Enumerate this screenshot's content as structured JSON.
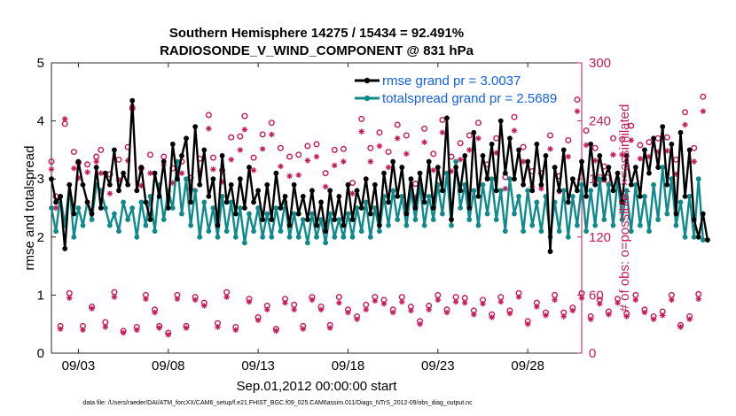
{
  "chart_data": {
    "type": "line",
    "title_line1": "Southern Hemisphere 14275 / 15434 = 92.491%",
    "title_line2": "RADIOSONDE_V_WIND_COMPONENT @ 831 hPa",
    "xlabel": "Sep.01,2012 00:00:00 start",
    "ylabel": "rmse and totalspread",
    "ylabel_right": "# of obs: o=possible; ×=assimilated",
    "xlim": [
      1.5,
      31.0
    ],
    "ylim": [
      0,
      5
    ],
    "ylim_right": [
      0,
      300
    ],
    "xticks": [
      {
        "value": 3,
        "label": "09/03"
      },
      {
        "value": 8,
        "label": "09/08"
      },
      {
        "value": 13,
        "label": "09/13"
      },
      {
        "value": 18,
        "label": "09/18"
      },
      {
        "value": 23,
        "label": "09/23"
      },
      {
        "value": 28,
        "label": "09/28"
      }
    ],
    "yticks": [
      "0",
      "1",
      "2",
      "3",
      "4",
      "5"
    ],
    "yticks_right": [
      "0",
      "60",
      "120",
      "180",
      "240",
      "300"
    ],
    "footnote": "data file: /Users/raeder/DAI/ATM_forcXX/CAM6_setup/f.e21.FHIST_BGC.f09_025.CAM6assim.011/Diags_NTrS_2012-09/obs_diag_output.nc",
    "colors": {
      "rmse": "#000000",
      "spread": "#0f8a8a",
      "obs": "#c7195b",
      "legend_text": "#1460e8"
    },
    "series": [
      {
        "name": "rmse",
        "legend": "rmse grand pr = 3.0037",
        "x_start": 1.5,
        "x_step": 0.25,
        "values": [
          3.0,
          2.6,
          2.7,
          1.8,
          2.9,
          2.4,
          3.3,
          2.9,
          2.6,
          2.4,
          3.2,
          2.5,
          3.1,
          2.9,
          3.5,
          2.8,
          3.1,
          2.9,
          4.35,
          2.8,
          3.2,
          2.6,
          2.3,
          3.1,
          2.7,
          3.3,
          2.5,
          3.6,
          3.0,
          3.4,
          3.7,
          2.6,
          3.9,
          2.9,
          3.5,
          2.7,
          3.0,
          2.2,
          3.4,
          2.6,
          2.9,
          2.4,
          3.0,
          2.5,
          3.2,
          2.6,
          2.8,
          2.3,
          2.9,
          2.3,
          3.1,
          2.5,
          2.7,
          2.2,
          2.9,
          2.4,
          2.7,
          2.3,
          2.8,
          2.2,
          2.6,
          2.1,
          2.8,
          2.3,
          2.7,
          2.2,
          2.9,
          2.3,
          2.8,
          2.5,
          3.0,
          2.4,
          2.9,
          2.2,
          3.1,
          2.6,
          3.3,
          2.7,
          3.2,
          2.4,
          3.0,
          2.5,
          3.1,
          2.6,
          3.3,
          2.5,
          3.2,
          2.8,
          4.05,
          2.3,
          3.2,
          2.8,
          3.4,
          2.5,
          3.8,
          2.7,
          3.4,
          3.0,
          3.6,
          2.8,
          4.0,
          3.1,
          3.7,
          3.0,
          3.5,
          2.9,
          3.3,
          2.8,
          3.6,
          2.9,
          3.4,
          1.75,
          3.2,
          2.8,
          3.5,
          2.6,
          3.0,
          2.8,
          3.3,
          2.7,
          3.6,
          2.9,
          3.4,
          3.0,
          3.2,
          2.8,
          3.1,
          2.6,
          3.4,
          2.9,
          3.2,
          2.7,
          3.5,
          3.1,
          3.7,
          3.2,
          3.9,
          2.9,
          3.6,
          2.4,
          3.8,
          2.7,
          3.5,
          2.3,
          2.0,
          2.4,
          1.95
        ]
      },
      {
        "name": "totalspread",
        "legend": "totalspread grand pr = 2.5689",
        "x_start": 1.5,
        "x_step": 0.25,
        "values": [
          2.5,
          2.1,
          2.7,
          2.2,
          2.9,
          2.0,
          2.5,
          2.2,
          2.6,
          2.3,
          2.9,
          2.8,
          2.5,
          2.2,
          2.4,
          2.1,
          2.6,
          2.3,
          2.5,
          2.0,
          2.6,
          2.2,
          2.7,
          2.1,
          2.9,
          2.3,
          2.8,
          2.5,
          3.3,
          2.4,
          3.0,
          2.2,
          2.8,
          2.0,
          2.6,
          2.1,
          2.5,
          2.0,
          2.7,
          2.1,
          2.6,
          2.0,
          2.5,
          1.9,
          2.4,
          2.1,
          2.5,
          2.0,
          2.4,
          2.0,
          2.5,
          2.1,
          2.6,
          2.0,
          2.4,
          2.0,
          2.3,
          1.9,
          2.4,
          2.0,
          2.3,
          1.9,
          2.4,
          2.0,
          2.3,
          2.0,
          2.4,
          2.0,
          2.5,
          2.1,
          2.6,
          2.0,
          2.5,
          2.1,
          2.7,
          2.2,
          2.8,
          2.3,
          2.7,
          2.2,
          2.8,
          2.3,
          2.9,
          2.2,
          2.7,
          2.3,
          2.9,
          2.4,
          3.1,
          2.2,
          3.3,
          2.5,
          2.9,
          2.3,
          2.8,
          2.2,
          2.9,
          2.4,
          3.0,
          2.3,
          2.8,
          2.1,
          3.0,
          2.4,
          2.7,
          2.1,
          2.8,
          2.2,
          2.6,
          2.1,
          2.7,
          2.0,
          2.6,
          2.1,
          2.8,
          2.0,
          2.7,
          2.2,
          2.9,
          2.1,
          2.8,
          2.2,
          3.0,
          2.3,
          2.9,
          2.2,
          3.0,
          2.3,
          2.8,
          2.1,
          2.9,
          2.2,
          2.7,
          2.1,
          2.9,
          2.3,
          3.2,
          2.4,
          3.0,
          2.2,
          2.6,
          2.0,
          2.7,
          2.0,
          3.0,
          1.95
        ]
      },
      {
        "name": "obs_possible",
        "marker": "o",
        "axis": "right",
        "x_start": 1.5,
        "x_step": 0.25,
        "values": [
          198,
          162,
          28,
          237,
          62,
          208,
          197,
          28,
          195,
          48,
          203,
          210,
          32,
          185,
          63,
          200,
          23,
          213,
          253,
          27,
          191,
          60,
          205,
          45,
          28,
          203,
          21,
          191,
          60,
          198,
          28,
          181,
          58,
          201,
          52,
          246,
          202,
          31,
          189,
          63,
          223,
          27,
          224,
          245,
          56,
          202,
          37,
          226,
          49,
          238,
          25,
          212,
          56,
          203,
          50,
          205,
          28,
          214,
          58,
          216,
          48,
          186,
          29,
          210,
          58,
          211,
          45,
          176,
          38,
          242,
          50,
          212,
          58,
          228,
          55,
          208,
          45,
          236,
          58,
          225,
          48,
          175,
          33,
          232,
          49,
          206,
          60,
          241,
          45,
          203,
          58,
          217,
          57,
          225,
          44,
          238,
          55,
          195,
          40,
          222,
          58,
          182,
          44,
          244,
          62,
          213,
          33,
          188,
          52,
          186,
          42,
          225,
          60,
          183,
          42,
          220,
          47,
          262,
          62,
          230,
          38,
          212,
          55,
          193,
          43,
          222,
          56,
          221,
          41,
          235,
          60,
          215,
          45,
          218,
          38,
          222,
          43,
          223,
          60,
          200,
          29,
          249,
          38,
          212,
          61,
          265
        ]
      },
      {
        "name": "obs_assimilated",
        "marker": "x",
        "axis": "right",
        "x_start": 1.5,
        "x_step": 0.25,
        "values": [
          190,
          150,
          25,
          242,
          57,
          191,
          181,
          24,
          187,
          46,
          198,
          186,
          27,
          165,
          58,
          179,
          21,
          199,
          255,
          24,
          173,
          56,
          186,
          42,
          26,
          195,
          19,
          176,
          56,
          186,
          26,
          170,
          55,
          188,
          49,
          232,
          190,
          27,
          177,
          58,
          200,
          24,
          210,
          231,
          53,
          189,
          34,
          211,
          45,
          226,
          23,
          193,
          52,
          183,
          45,
          184,
          25,
          199,
          55,
          203,
          45,
          172,
          26,
          194,
          52,
          198,
          42,
          165,
          35,
          229,
          45,
          198,
          54,
          214,
          51,
          192,
          42,
          222,
          53,
          206,
          44,
          161,
          30,
          218,
          45,
          189,
          55,
          228,
          42,
          188,
          53,
          200,
          52,
          210,
          40,
          222,
          51,
          181,
          37,
          207,
          53,
          170,
          41,
          230,
          58,
          198,
          30,
          172,
          48,
          170,
          39,
          211,
          55,
          167,
          38,
          203,
          44,
          250,
          57,
          215,
          35,
          199,
          51,
          179,
          40,
          205,
          52,
          205,
          38,
          220,
          55,
          201,
          42,
          203,
          35,
          208,
          39,
          209,
          55,
          185,
          27,
          236,
          35,
          198,
          56,
          250
        ]
      }
    ]
  }
}
